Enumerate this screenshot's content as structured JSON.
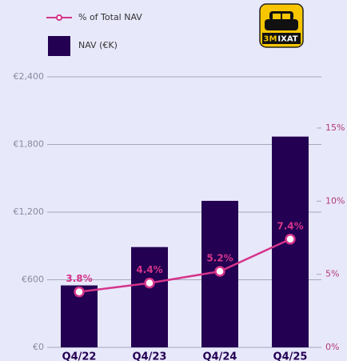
{
  "chart_data": {
    "type": "bar_line",
    "categories": [
      "Q4/22",
      "Q4/23",
      "Q4/24",
      "Q4/25"
    ],
    "series": [
      {
        "name": "NAV (€K)",
        "color": "#230052",
        "values": [
          550,
          890,
          1300,
          1870
        ]
      },
      {
        "name": "% of Total NAV",
        "color": "#d4358a",
        "axis": "y2",
        "values": [
          3.8,
          4.4,
          5.2,
          7.4
        ],
        "value_labels": [
          "3.8%",
          "4.4%",
          "5.2%",
          "7.4%"
        ]
      }
    ],
    "ylim": [
      0,
      2400
    ],
    "yticks": [
      {
        "value": 0,
        "label": "€0"
      },
      {
        "value": 600,
        "label": "€600"
      },
      {
        "value": 1200,
        "label": "€1,200"
      },
      {
        "value": 1800,
        "label": "€1,800"
      },
      {
        "value": 2400,
        "label": "€2,400"
      }
    ],
    "y2lim": [
      0,
      18.5
    ],
    "y2ticks": [
      {
        "value": 0,
        "label": "0%"
      },
      {
        "value": 5,
        "label": "5%"
      },
      {
        "value": 10,
        "label": "10%"
      },
      {
        "value": 15,
        "label": "15%"
      }
    ],
    "grid": true
  },
  "logo": {
    "left": "3M",
    "right": "IXAT"
  }
}
